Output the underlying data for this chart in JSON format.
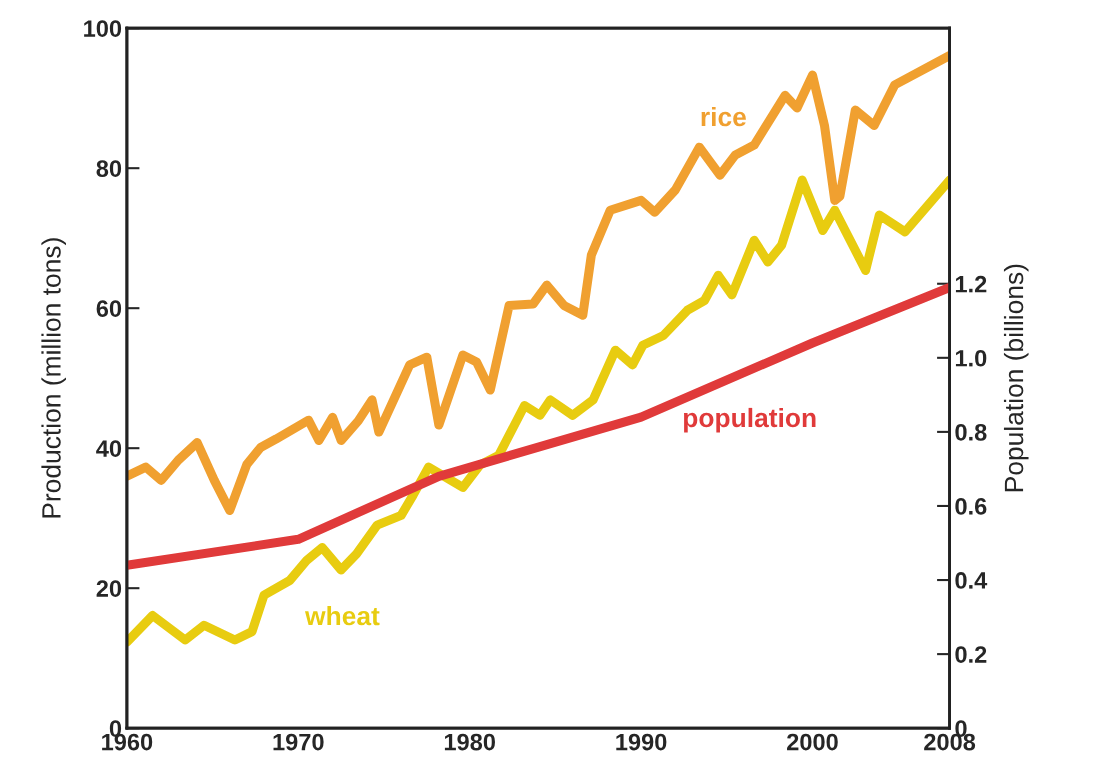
{
  "chart_data": {
    "type": "line",
    "ylabel": "Production (million tons)",
    "y2label": "Population (billions)",
    "xlim": [
      1960,
      2008
    ],
    "xticks": [
      1960,
      1970,
      1980,
      1990,
      2000,
      2008
    ],
    "ylim": [
      0,
      100
    ],
    "yticks": [
      0,
      20,
      40,
      60,
      80,
      100
    ],
    "y2lim": [
      0,
      1.89
    ],
    "y2ticks": [
      0,
      0.2,
      0.4,
      0.6,
      0.8,
      {
        "value": 1,
        "label": "1.0"
      },
      1.2
    ],
    "grid": false,
    "legend": false,
    "series": [
      {
        "name": "rice",
        "color": "#f0a030",
        "x": [
          1960,
          1961.1,
          1962,
          1963,
          1964.1,
          1965.1,
          1966,
          1967,
          1967.8,
          1968.7,
          1970.6,
          1971.2,
          1972,
          1972.5,
          1973.5,
          1974.3,
          1974.7,
          1976.5,
          1977.5,
          1978.2,
          1979.6,
          1980.4,
          1981.2,
          1982.3,
          1983.7,
          1984.5,
          1985.5,
          1986.6,
          1987.1,
          1988.2,
          1990,
          1990.8,
          1992,
          1993.4,
          1994.6,
          1995.5,
          1996.6,
          1998.4,
          1999.1,
          2000,
          2000.7,
          2001.3,
          2001.6,
          2002.5,
          2003.6,
          2004.8,
          2008
        ],
        "values": [
          36,
          37.3,
          35.4,
          38.3,
          40.8,
          35.4,
          31.1,
          37.7,
          40.1,
          41.3,
          44,
          41.1,
          44.4,
          41.1,
          43.9,
          46.9,
          42.3,
          51.9,
          53,
          43.3,
          53.3,
          52.3,
          48.3,
          60.4,
          60.6,
          63.3,
          60.4,
          59,
          67.6,
          74,
          75.4,
          73.7,
          76.9,
          83,
          79,
          81.9,
          83.3,
          90.4,
          88.6,
          93.3,
          86.1,
          75.4,
          76,
          88.3,
          86.1,
          91.9,
          96.1
        ]
      },
      {
        "name": "wheat",
        "color": "#e8cc10",
        "x": [
          1960,
          1961.5,
          1963.4,
          1964.5,
          1966.3,
          1967.3,
          1968,
          1969.5,
          1970.5,
          1971.4,
          1972.5,
          1973.4,
          1974.6,
          1976,
          1976.7,
          1977.6,
          1979.6,
          1980.6,
          1981.7,
          1983.2,
          1984.1,
          1984.7,
          1986,
          1987.2,
          1988.5,
          1989.5,
          1990.1,
          1991.3,
          1992.7,
          1993.7,
          1994.5,
          1995.3,
          1996.6,
          1997.4,
          1998.2,
          1999.4,
          2000.6,
          2001.3,
          2003.1,
          2003.9,
          2005.4,
          2008
        ],
        "values": [
          12.3,
          16.1,
          12.6,
          14.7,
          12.6,
          13.8,
          19,
          21.1,
          24,
          25.8,
          22.6,
          24.9,
          29,
          30.4,
          33.3,
          37.3,
          34.4,
          37.6,
          39,
          46.1,
          44.7,
          46.9,
          44.7,
          46.9,
          54,
          51.9,
          54.7,
          56.1,
          59.7,
          61.1,
          64.7,
          61.9,
          69.7,
          66.6,
          69,
          78.3,
          71.1,
          74,
          65.4,
          73.3,
          70.9,
          78.3
        ]
      },
      {
        "name": "population",
        "color": "#e03a3a",
        "axis": "y2",
        "x": [
          1960,
          1970,
          1978.2,
          1990,
          2000,
          2008
        ],
        "values": [
          0.44,
          0.51,
          0.68,
          0.84,
          1.04,
          1.19
        ]
      }
    ]
  }
}
